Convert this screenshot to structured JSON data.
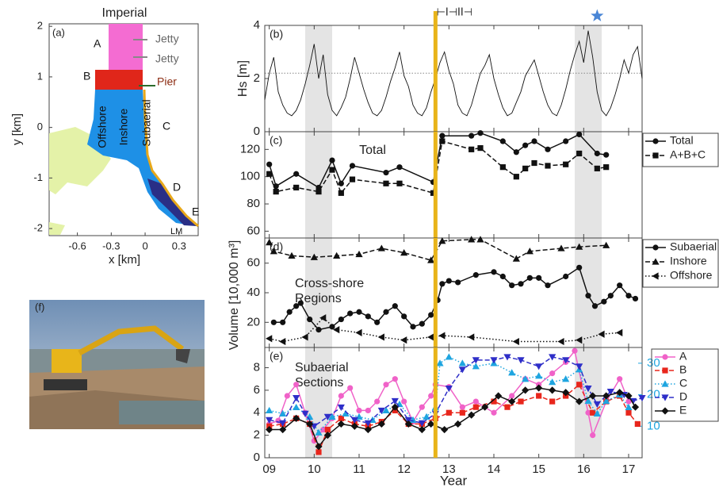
{
  "chart_data": [
    {
      "type": "map",
      "title": "Imperial",
      "label": "(a)",
      "xlabel": "x [km]",
      "ylabel": "y [km]",
      "xlim": [
        -0.85,
        0.47
      ],
      "ylim": [
        -2.14,
        2.05
      ],
      "xticks": [
        -0.6,
        -0.3,
        0,
        0.3
      ],
      "yticks": [
        -2,
        -1,
        0,
        1,
        2
      ],
      "labels": [
        "A",
        "B",
        "C",
        "D",
        "E",
        "Jetty",
        "Jetty",
        "Pier",
        "Offshore",
        "Inshore",
        "Subaerial",
        "LM"
      ]
    },
    {
      "type": "line",
      "label": "(b)",
      "ylabel": "Hs [m]",
      "xlim": [
        8.9,
        17.3
      ],
      "ylim": [
        0,
        4
      ],
      "yticks": [
        0,
        2,
        4
      ],
      "shaded": [
        [
          9.8,
          10.4
        ],
        [
          15.8,
          16.4
        ]
      ],
      "event_x": 12.7,
      "hline": 2.2,
      "annotation": "⊢I⊣II⊣",
      "star_x": 16.3,
      "star_color": "#4a86d6",
      "series": [
        {
          "color": "#111111",
          "style": "solid",
          "marker": "none",
          "x": [
            8.9,
            9.0,
            9.1,
            9.2,
            9.3,
            9.4,
            9.5,
            9.6,
            9.7,
            9.8,
            9.9,
            10.0,
            10.1,
            10.2,
            10.3,
            10.4,
            10.5,
            10.6,
            10.7,
            10.8,
            10.9,
            11.0,
            11.1,
            11.2,
            11.3,
            11.4,
            11.5,
            11.6,
            11.7,
            11.8,
            11.9,
            12.0,
            12.1,
            12.2,
            12.3,
            12.4,
            12.5,
            12.6,
            12.7,
            12.8,
            12.9,
            13.0,
            13.1,
            13.2,
            13.3,
            13.4,
            13.5,
            13.6,
            13.7,
            13.8,
            13.9,
            14.0,
            14.1,
            14.2,
            14.3,
            14.4,
            14.5,
            14.6,
            14.7,
            14.8,
            14.9,
            15.0,
            15.1,
            15.2,
            15.3,
            15.4,
            15.5,
            15.6,
            15.7,
            15.8,
            15.9,
            16.0,
            16.1,
            16.2,
            16.3,
            16.4,
            16.5,
            16.6,
            16.7,
            16.8,
            16.9,
            17.0,
            17.1,
            17.2,
            17.3
          ],
          "values": [
            1.2,
            2.2,
            2.8,
            1.5,
            1.0,
            0.7,
            0.6,
            0.8,
            1.2,
            1.8,
            2.5,
            3.3,
            2.0,
            2.9,
            1.4,
            0.8,
            0.6,
            0.9,
            1.3,
            2.0,
            2.8,
            2.2,
            1.6,
            1.1,
            0.7,
            0.6,
            0.8,
            1.3,
            1.9,
            2.4,
            3.0,
            2.1,
            1.7,
            1.0,
            0.7,
            0.6,
            0.9,
            1.5,
            2.0,
            2.6,
            3.0,
            2.3,
            1.8,
            1.0,
            0.7,
            0.6,
            1.0,
            1.6,
            2.2,
            2.5,
            2.9,
            2.0,
            1.4,
            0.9,
            0.6,
            0.7,
            1.1,
            1.5,
            2.1,
            2.4,
            2.7,
            2.1,
            1.5,
            1.0,
            0.7,
            0.6,
            1.0,
            1.6,
            2.3,
            2.9,
            3.4,
            2.6,
            3.8,
            2.8,
            1.5,
            0.8,
            0.6,
            0.9,
            1.4,
            2.0,
            2.7,
            2.2,
            2.9,
            3.2,
            2.0
          ]
        }
      ]
    },
    {
      "type": "line",
      "label": "(c)",
      "note": [
        "Total"
      ],
      "xlim": [
        8.9,
        17.3
      ],
      "ylim": [
        55,
        133
      ],
      "yticks": [
        60,
        80,
        100,
        120
      ],
      "shaded": [
        [
          9.8,
          10.4
        ],
        [
          15.8,
          16.4
        ]
      ],
      "event_x": 12.7,
      "series": [
        {
          "name": "Total",
          "color": "#111111",
          "style": "solid",
          "marker": "circle",
          "x": [
            9.0,
            9.15,
            9.6,
            10.1,
            10.4,
            10.6,
            10.85,
            11.6,
            11.9,
            12.65,
            12.85,
            13.5,
            13.7,
            14.2,
            14.5,
            14.7,
            14.9,
            15.2,
            15.6,
            15.9,
            16.3,
            16.5
          ],
          "values": [
            109,
            93,
            102,
            92,
            112,
            95,
            108,
            103,
            107,
            96,
            130,
            130,
            132,
            126,
            118,
            123,
            126,
            120,
            126,
            131,
            117,
            116
          ]
        },
        {
          "name": "A+B+C",
          "color": "#111111",
          "style": "dashed",
          "marker": "square",
          "x": [
            9.0,
            9.15,
            9.6,
            10.1,
            10.4,
            10.6,
            10.85,
            11.6,
            11.9,
            12.65,
            12.85,
            13.5,
            13.7,
            14.2,
            14.5,
            14.7,
            14.9,
            15.2,
            15.6,
            15.9,
            16.3,
            16.5
          ],
          "values": [
            102,
            89,
            92,
            89,
            105,
            88,
            98,
            95,
            95,
            88,
            126,
            120,
            121,
            107,
            100,
            106,
            110,
            108,
            109,
            117,
            106,
            107
          ]
        }
      ]
    },
    {
      "type": "line",
      "label": "(d)",
      "note": [
        "Cross-shore",
        "Regions"
      ],
      "ylabel": "Volume [10,000 m³]",
      "xlim": [
        8.9,
        17.3
      ],
      "ylim": [
        3,
        77
      ],
      "yticks": [
        20,
        40,
        60
      ],
      "shaded": [
        [
          9.8,
          10.4
        ],
        [
          15.8,
          16.4
        ]
      ],
      "event_x": 12.7,
      "series": [
        {
          "name": "Subaerial",
          "color": "#111111",
          "style": "solid",
          "marker": "circle",
          "x": [
            9.1,
            9.3,
            9.45,
            9.6,
            9.7,
            9.9,
            10.1,
            10.4,
            10.6,
            10.8,
            11.0,
            11.2,
            11.4,
            11.6,
            11.8,
            12.0,
            12.2,
            12.4,
            12.6,
            12.75,
            12.85,
            13.0,
            13.2,
            13.6,
            14.0,
            14.2,
            14.4,
            14.6,
            14.8,
            15.0,
            15.2,
            15.6,
            15.9,
            16.1,
            16.25,
            16.45,
            16.6,
            16.8,
            17.0,
            17.15
          ],
          "values": [
            20,
            20,
            27,
            31,
            33,
            22,
            15,
            17,
            22,
            26,
            27,
            24,
            20,
            27,
            31,
            24,
            17,
            19,
            25,
            35,
            46,
            48,
            47,
            52,
            54,
            51,
            45,
            46,
            50,
            50,
            45,
            51,
            57,
            38,
            31,
            34,
            38,
            45,
            38,
            36
          ]
        },
        {
          "name": "Inshore",
          "color": "#111111",
          "style": "dashed",
          "marker": "triangle-up",
          "x": [
            9.0,
            9.1,
            9.5,
            10.0,
            10.5,
            11.0,
            11.5,
            12.0,
            12.6,
            12.85,
            13.5,
            13.7,
            14.5,
            14.8,
            15.5,
            15.9,
            16.5
          ],
          "values": [
            74,
            68,
            65,
            64,
            65,
            66,
            70,
            67,
            62,
            75,
            76,
            76,
            63,
            68,
            70,
            71,
            72
          ]
        },
        {
          "name": "Offshore",
          "color": "#111111",
          "style": "dotted",
          "marker": "triangle-left",
          "x": [
            9.0,
            9.3,
            9.8,
            10.2,
            10.5,
            11.0,
            11.5,
            12.0,
            12.6,
            12.85,
            13.5,
            14.5,
            15.5,
            15.9,
            16.4,
            16.8
          ],
          "values": [
            9,
            7,
            10,
            23,
            15,
            13,
            10,
            8,
            10,
            11,
            10,
            7,
            7,
            8,
            12,
            13
          ]
        }
      ]
    },
    {
      "type": "line",
      "label": "(e)",
      "note": [
        "Subaerial",
        "Sections"
      ],
      "xlabel": "Year",
      "xlim": [
        8.9,
        17.3
      ],
      "ylim": [
        0,
        9.8
      ],
      "yticks": [
        0,
        2,
        4,
        6,
        8
      ],
      "y2lim": [
        0,
        35
      ],
      "y2ticks": [
        10,
        20,
        30
      ],
      "y2color": "#1ea5e0",
      "xticks": [
        {
          "value": 9,
          "label": "09"
        },
        10,
        11,
        12,
        13,
        14,
        15,
        16,
        17
      ],
      "shaded": [
        [
          9.8,
          10.4
        ],
        [
          15.8,
          16.4
        ]
      ],
      "event_x": 12.7,
      "series": [
        {
          "name": "A",
          "color": "#f062c8",
          "style": "solid",
          "marker": "circle",
          "x": [
            9.0,
            9.2,
            9.4,
            9.6,
            9.8,
            10.0,
            10.2,
            10.4,
            10.6,
            10.8,
            11.0,
            11.2,
            11.4,
            11.6,
            11.8,
            12.0,
            12.2,
            12.4,
            12.6,
            12.7,
            13.0,
            13.3,
            13.6,
            14.0,
            14.4,
            14.7,
            15.0,
            15.3,
            15.6,
            15.8,
            16.1,
            16.2,
            16.5,
            16.8,
            17.0
          ],
          "values": [
            3,
            3.3,
            5.5,
            6.5,
            4,
            1.5,
            2.5,
            3.5,
            5.5,
            6.2,
            4.2,
            4.2,
            5,
            6.5,
            7,
            5,
            3.2,
            4.5,
            5.5,
            6.5,
            6.3,
            4.5,
            5,
            4,
            5.5,
            7,
            6.5,
            7.5,
            8.5,
            9.5,
            4,
            2,
            5,
            7,
            5
          ]
        },
        {
          "name": "B",
          "color": "#e8261c",
          "style": "dashed",
          "marker": "square",
          "x": [
            9.0,
            9.3,
            9.6,
            9.9,
            10.1,
            10.3,
            10.6,
            10.9,
            11.2,
            11.5,
            11.8,
            12.1,
            12.4,
            12.7,
            13.0,
            13.3,
            13.6,
            14.0,
            14.3,
            14.6,
            15.0,
            15.3,
            15.6,
            15.9,
            16.2,
            16.5,
            16.8,
            17.0,
            17.2
          ],
          "values": [
            2.8,
            3,
            3.5,
            3,
            0.5,
            2.5,
            3.5,
            3,
            2.8,
            3.2,
            4.2,
            3,
            3,
            3.5,
            4,
            4,
            4.5,
            5,
            4.5,
            5,
            5.5,
            5,
            5.5,
            6.5,
            4,
            5,
            5.5,
            4,
            3
          ]
        },
        {
          "name": "C",
          "color": "#1ea5e0",
          "style": "dotted",
          "marker": "triangle-up",
          "axis": "y2",
          "x": [
            9.0,
            9.3,
            9.6,
            9.9,
            10.1,
            10.4,
            10.7,
            11.0,
            11.3,
            11.6,
            11.9,
            12.2,
            12.5,
            12.7,
            12.8,
            13.0,
            13.3,
            13.6,
            14.0,
            14.4,
            14.7,
            15.0,
            15.3,
            15.6,
            15.9,
            16.1,
            16.3,
            16.5,
            16.8,
            17.0
          ],
          "values": [
            15,
            14,
            16,
            13,
            8,
            13,
            14,
            13,
            12,
            15,
            17,
            12,
            13,
            16,
            30,
            32,
            30,
            29,
            30,
            27,
            25,
            26,
            24,
            25,
            28,
            18,
            14,
            18,
            20,
            16
          ]
        },
        {
          "name": "D",
          "color": "#2e2ec8",
          "style": "dashed",
          "marker": "triangle-down",
          "axis": "y2",
          "x": [
            9.0,
            9.3,
            9.6,
            9.8,
            10.0,
            10.3,
            10.6,
            10.9,
            11.2,
            11.5,
            11.8,
            12.1,
            12.4,
            12.7,
            13.0,
            13.3,
            13.6,
            14.0,
            14.3,
            14.6,
            15.0,
            15.3,
            15.6,
            15.9,
            16.1,
            16.3,
            16.6,
            16.9,
            17.1,
            17.3
          ],
          "values": [
            12,
            11,
            19,
            14,
            10,
            13,
            16,
            12,
            11,
            15,
            18,
            12,
            11,
            14,
            22,
            28,
            31,
            31,
            32,
            31,
            29,
            32,
            31,
            29,
            22,
            17,
            21,
            20,
            18,
            19
          ]
        },
        {
          "name": "E",
          "color": "#111111",
          "style": "solid",
          "marker": "diamond",
          "x": [
            9.0,
            9.3,
            9.6,
            9.9,
            10.1,
            10.3,
            10.6,
            10.9,
            11.2,
            11.5,
            11.8,
            12.1,
            12.4,
            12.6,
            12.9,
            13.2,
            13.5,
            13.8,
            14.1,
            14.4,
            14.7,
            15.0,
            15.3,
            15.6,
            15.9,
            16.2,
            16.5,
            16.8,
            17.0,
            17.15
          ],
          "values": [
            2.5,
            2.5,
            3.5,
            3,
            1,
            2,
            3,
            2.8,
            2.5,
            3,
            4.5,
            3,
            2.5,
            3,
            2.5,
            3,
            3.8,
            4.5,
            5.5,
            5,
            6,
            6.2,
            6,
            5.8,
            5,
            5.5,
            5.5,
            5.8,
            5.5,
            4.5
          ]
        }
      ]
    }
  ]
}
